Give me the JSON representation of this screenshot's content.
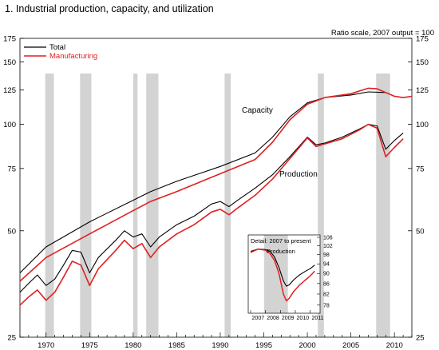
{
  "chart_data": {
    "type": "line",
    "title": "1.  Industrial production, capacity, and utilization",
    "scale_note": "Ratio scale, 2007 output = 100",
    "y_scale": "log",
    "ylim": [
      25,
      175
    ],
    "xlim": [
      1967,
      2012
    ],
    "y_ticks": [
      25,
      50,
      75,
      100,
      125,
      150,
      175
    ],
    "x_ticks": [
      1970,
      1975,
      1980,
      1985,
      1990,
      1995,
      2000,
      2005,
      2010
    ],
    "recessions": [
      [
        1969.9,
        1970.9
      ],
      [
        1973.9,
        1975.2
      ],
      [
        1980.0,
        1980.5
      ],
      [
        1981.5,
        1982.9
      ],
      [
        1990.5,
        1991.2
      ],
      [
        2001.2,
        2001.9
      ],
      [
        2007.9,
        2009.5
      ]
    ],
    "annotations": {
      "capacity": "Capacity",
      "production": "Production"
    },
    "legend": {
      "position": "top-left",
      "entries": [
        {
          "name": "Total",
          "color": "#000000"
        },
        {
          "name": "Manufacturing",
          "color": "#e02020"
        }
      ]
    },
    "series": [
      {
        "name": "Total",
        "color": "#000000",
        "capacity": [
          [
            1967,
            38
          ],
          [
            1970,
            45
          ],
          [
            1975,
            53
          ],
          [
            1980,
            61
          ],
          [
            1982,
            64.5
          ],
          [
            1985,
            69
          ],
          [
            1990,
            76
          ],
          [
            1994,
            83
          ],
          [
            1996,
            92
          ],
          [
            1998,
            105
          ],
          [
            2000,
            115
          ],
          [
            2002,
            119
          ],
          [
            2005,
            121
          ],
          [
            2007,
            123.5
          ],
          [
            2009,
            123
          ],
          [
            2010,
            120
          ],
          [
            2011,
            119
          ],
          [
            2012,
            120
          ]
        ],
        "production": [
          [
            1967,
            33.5
          ],
          [
            1968,
            35.5
          ],
          [
            1969,
            37.5
          ],
          [
            1970,
            35
          ],
          [
            1971,
            36.5
          ],
          [
            1972,
            40
          ],
          [
            1973,
            44
          ],
          [
            1974,
            43.5
          ],
          [
            1975,
            38
          ],
          [
            1976,
            42
          ],
          [
            1978,
            47
          ],
          [
            1979,
            50
          ],
          [
            1980,
            48
          ],
          [
            1981,
            49
          ],
          [
            1982,
            45
          ],
          [
            1983,
            48
          ],
          [
            1985,
            52
          ],
          [
            1987,
            55
          ],
          [
            1989,
            59.5
          ],
          [
            1990,
            60.5
          ],
          [
            1991,
            58.5
          ],
          [
            1992,
            61
          ],
          [
            1994,
            66
          ],
          [
            1996,
            72
          ],
          [
            1998,
            81
          ],
          [
            2000,
            92
          ],
          [
            2001,
            87.5
          ],
          [
            2002,
            88.5
          ],
          [
            2004,
            92
          ],
          [
            2006,
            97
          ],
          [
            2007,
            100
          ],
          [
            2008,
            99
          ],
          [
            2009,
            85
          ],
          [
            2010,
            90
          ],
          [
            2011,
            94.5
          ]
        ]
      },
      {
        "name": "Manufacturing",
        "color": "#e02020",
        "capacity": [
          [
            1967,
            36
          ],
          [
            1970,
            42
          ],
          [
            1975,
            49
          ],
          [
            1980,
            57
          ],
          [
            1982,
            60.5
          ],
          [
            1985,
            64.5
          ],
          [
            1990,
            72.5
          ],
          [
            1994,
            79.5
          ],
          [
            1996,
            89
          ],
          [
            1998,
            103
          ],
          [
            2000,
            114
          ],
          [
            2002,
            119
          ],
          [
            2005,
            122
          ],
          [
            2007,
            126.5
          ],
          [
            2008,
            126
          ],
          [
            2009,
            123
          ],
          [
            2010,
            120
          ],
          [
            2011,
            119
          ],
          [
            2012,
            120
          ]
        ],
        "production": [
          [
            1967,
            30.8
          ],
          [
            1968,
            32.5
          ],
          [
            1969,
            34
          ],
          [
            1970,
            31.8
          ],
          [
            1971,
            33.5
          ],
          [
            1972,
            37
          ],
          [
            1973,
            41
          ],
          [
            1974,
            40
          ],
          [
            1975,
            35
          ],
          [
            1976,
            39
          ],
          [
            1978,
            44
          ],
          [
            1979,
            47
          ],
          [
            1980,
            44.5
          ],
          [
            1981,
            46
          ],
          [
            1982,
            42
          ],
          [
            1983,
            45
          ],
          [
            1985,
            49
          ],
          [
            1987,
            52
          ],
          [
            1989,
            56.5
          ],
          [
            1990,
            57.5
          ],
          [
            1991,
            55.5
          ],
          [
            1992,
            58
          ],
          [
            1994,
            63
          ],
          [
            1996,
            70
          ],
          [
            1998,
            80
          ],
          [
            2000,
            91.5
          ],
          [
            2001,
            86.5
          ],
          [
            2002,
            88
          ],
          [
            2004,
            91
          ],
          [
            2006,
            96.5
          ],
          [
            2007,
            100
          ],
          [
            2008,
            97.5
          ],
          [
            2009,
            81
          ],
          [
            2010,
            86
          ],
          [
            2011,
            91
          ]
        ]
      }
    ],
    "inset": {
      "title": "Detail: 2007 to present",
      "label": "Production",
      "y_scale": "log",
      "ylim": [
        76,
        106
      ],
      "y_ticks": [
        78,
        82,
        86,
        90,
        94,
        98,
        102,
        106
      ],
      "x_ticks": [
        2007,
        2008,
        2009,
        2010,
        2011
      ],
      "recession": [
        2007.9,
        2009.5
      ],
      "series": [
        {
          "name": "Total",
          "color": "#000000",
          "values": [
            [
              2007.0,
              99.5
            ],
            [
              2007.5,
              100.5
            ],
            [
              2008.0,
              100.3
            ],
            [
              2008.3,
              99.5
            ],
            [
              2008.6,
              97
            ],
            [
              2008.9,
              92.5
            ],
            [
              2009.2,
              87
            ],
            [
              2009.4,
              85
            ],
            [
              2009.6,
              85.5
            ],
            [
              2009.9,
              87.5
            ],
            [
              2010.3,
              89.5
            ],
            [
              2010.7,
              91
            ],
            [
              2011.0,
              92
            ],
            [
              2011.3,
              93.5
            ]
          ]
        },
        {
          "name": "Manufacturing",
          "color": "#e02020",
          "values": [
            [
              2007.0,
              99
            ],
            [
              2007.5,
              100.5
            ],
            [
              2008.0,
              100
            ],
            [
              2008.3,
              98.5
            ],
            [
              2008.6,
              95.5
            ],
            [
              2008.9,
              90
            ],
            [
              2009.2,
              82
            ],
            [
              2009.4,
              79.5
            ],
            [
              2009.6,
              80.5
            ],
            [
              2009.9,
              83
            ],
            [
              2010.3,
              85.5
            ],
            [
              2010.7,
              87.5
            ],
            [
              2011.0,
              89
            ],
            [
              2011.3,
              91
            ]
          ]
        }
      ]
    }
  }
}
